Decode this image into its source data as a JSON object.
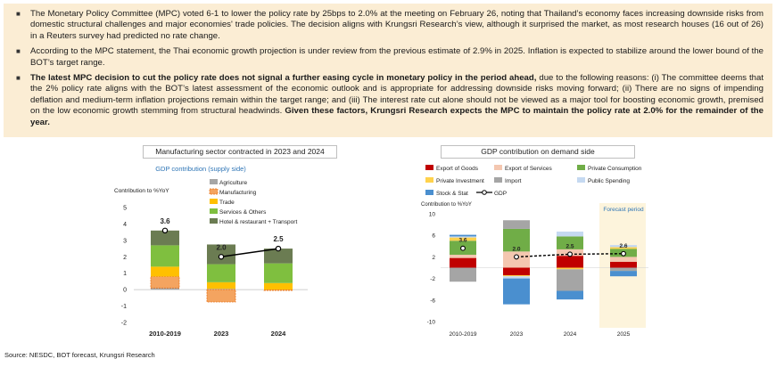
{
  "summary": {
    "b1": "The Monetary Policy Committee (MPC) voted 6-1 to lower the policy rate by 25bps to 2.0% at the meeting on February 26, noting that Thailand’s economy faces increasing downside risks from domestic structural challenges and major economies' trade policies. The decision aligns with Krungsri Research’s view, although it surprised the market, as most research houses (16 out of 26) in a Reuters survey had predicted no rate change.",
    "b2": "According to the MPC statement, the Thai economic growth projection is under review from the previous estimate of 2.9% in 2025. Inflation is expected to stabilize around the lower bound of the BOT’s target range.",
    "b3_bold": "The latest MPC decision to cut the policy rate does not signal a further easing cycle in monetary policy in the period ahead,",
    "b3_text": " due to the following reasons: (i) The committee deems that the 2% policy rate aligns with the BOT’s latest assessment of the economic outlook and is appropriate for addressing downside risks moving forward; (ii) There are no signs of impending deflation and medium-term inflation projections remain within the target range; and (iii) The interest rate cut alone should not be viewed as a major tool for boosting economic growth, premised on the low economic growth stemming from structural headwinds. ",
    "b3_bold2": "Given these factors, Krungsri Research expects the MPC to maintain the policy rate at 2.0% for the remainder of the year."
  },
  "source": "Source: NESDC, BOT forecast, Krungsri Research",
  "colors": {
    "agriculture": "#a6a6a6",
    "manufacturing": "#f4a460",
    "manufacturing_edge": "#e8731a",
    "trade": "#ffc000",
    "services": "#7fbf3f",
    "hotel": "#6b7c52",
    "export_goods": "#c00000",
    "export_services": "#f4c7b0",
    "private_consumption": "#70ad47",
    "private_investment": "#ffd24d",
    "import": "#a5a5a5",
    "public_spending": "#c5d9f1",
    "stock": "#4a8fcf",
    "forecast_bg": "#fdf4dc",
    "line": "#000000",
    "subtitle": "#2e75b6"
  },
  "chart_data": [
    {
      "type": "bar",
      "title": "Manufacturing sector contracted in 2023 and 2024",
      "subtitle": "GDP contribution (supply side)",
      "ylabel": "Contribution to %YoY",
      "ylim": [
        -2,
        5
      ],
      "yticks": [
        "5",
        "4",
        "3",
        "2",
        "1",
        "0",
        "-1",
        "-2"
      ],
      "categories": [
        "2010-2019",
        "2023",
        "2024"
      ],
      "series": [
        {
          "name": "Agriculture",
          "key": "agriculture",
          "values": [
            0.1,
            0.05,
            0.0
          ]
        },
        {
          "name": "Manufacturing",
          "key": "manufacturing",
          "values": [
            0.7,
            -0.75,
            -0.05
          ]
        },
        {
          "name": "Trade",
          "key": "trade",
          "values": [
            0.6,
            0.4,
            0.4
          ]
        },
        {
          "name": "Services & Others",
          "key": "services",
          "values": [
            1.3,
            1.1,
            1.2
          ]
        },
        {
          "name": "Hotel & restaurant + Transport",
          "key": "hotel",
          "values": [
            0.9,
            1.2,
            0.9
          ]
        }
      ],
      "line": {
        "name": "GDP",
        "values": [
          3.6,
          2.0,
          2.5
        ],
        "labels": [
          "3.6",
          "2.0",
          "2.5"
        ]
      }
    },
    {
      "type": "bar",
      "title": "GDP contribution on demand side",
      "ylabel": "Contribution to %YoY",
      "ylim": [
        -10,
        10
      ],
      "yticks": [
        "10",
        "6",
        "2",
        "-2",
        "-6",
        "-10"
      ],
      "categories": [
        "2010-2019",
        "2023",
        "2024",
        "2025"
      ],
      "annotation": "Forecast period",
      "series": [
        {
          "name": "Export of Goods",
          "key": "export_goods",
          "values": [
            1.8,
            -1.4,
            2.2,
            1.1
          ]
        },
        {
          "name": "Export of Services",
          "key": "export_services",
          "values": [
            0.6,
            3.0,
            1.2,
            0.9
          ]
        },
        {
          "name": "Private Consumption",
          "key": "private_consumption",
          "values": [
            2.6,
            4.2,
            2.4,
            1.5
          ]
        },
        {
          "name": "Private Investment",
          "key": "private_investment",
          "values": [
            0.6,
            -0.2,
            -0.3,
            0.3
          ]
        },
        {
          "name": "Import",
          "key": "import",
          "values": [
            -2.6,
            1.6,
            -4.0,
            -0.6
          ]
        },
        {
          "name": "Public Spending",
          "key": "public_spending",
          "values": [
            0.2,
            -0.4,
            0.9,
            0.4
          ]
        },
        {
          "name": "Stock & Stat",
          "key": "stock",
          "values": [
            0.3,
            -4.8,
            -1.6,
            -1.0
          ]
        }
      ],
      "line": {
        "name": "GDP",
        "values": [
          3.6,
          2.0,
          2.5,
          2.6
        ],
        "labels": [
          "3.6",
          "2.0",
          "2.5",
          "2.6"
        ]
      }
    }
  ]
}
